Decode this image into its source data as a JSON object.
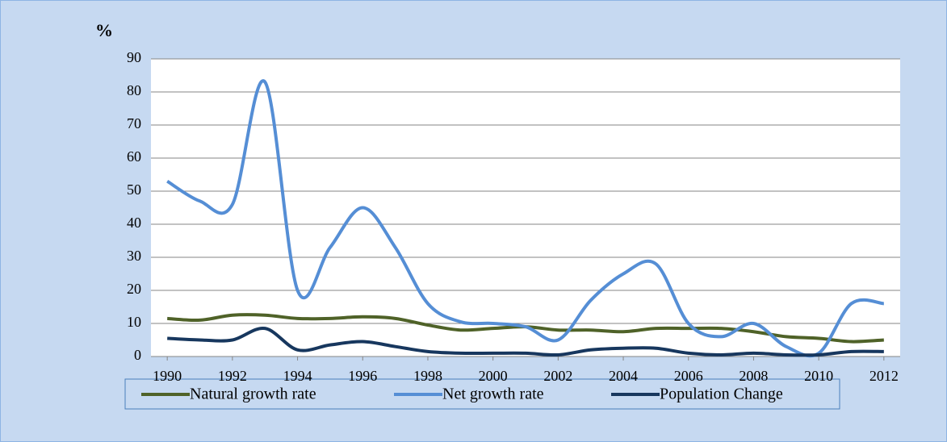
{
  "chart_data": {
    "type": "line",
    "ylabel": "%",
    "x": [
      1990,
      1991,
      1992,
      1993,
      1994,
      1995,
      1996,
      1997,
      1998,
      1999,
      2000,
      2001,
      2002,
      2003,
      2004,
      2005,
      2006,
      2007,
      2008,
      2009,
      2010,
      2011,
      2012
    ],
    "xlim": [
      1989.5,
      2012.5
    ],
    "xticks": [
      1990,
      1992,
      1994,
      1996,
      1998,
      2000,
      2002,
      2004,
      2006,
      2008,
      2010,
      2012
    ],
    "ylim": [
      0,
      90
    ],
    "yticks": [
      0,
      10,
      20,
      30,
      40,
      50,
      60,
      70,
      80,
      90
    ],
    "grid": true,
    "legend": "bottom",
    "series": [
      {
        "name": "Natural growth rate",
        "color": "#4f6228",
        "values": [
          11.5,
          11,
          12.5,
          12.5,
          11.5,
          11.5,
          12,
          11.5,
          9.5,
          8,
          8.5,
          9,
          8,
          8,
          7.5,
          8.5,
          8.5,
          8.5,
          7.5,
          6,
          5.5,
          4.5,
          5
        ]
      },
      {
        "name": "Net growth  rate",
        "color": "#558ed5",
        "values": [
          53,
          47,
          46,
          83,
          20,
          33,
          45,
          33,
          16,
          10.5,
          10,
          9,
          5,
          17,
          25,
          28,
          10,
          6,
          10,
          3,
          1,
          16,
          16
        ]
      },
      {
        "name": "Population Change",
        "color": "#17375e",
        "values": [
          5.5,
          5,
          5,
          8.5,
          2,
          3.5,
          4.5,
          3,
          1.5,
          1,
          1,
          1,
          0.5,
          2,
          2.5,
          2.5,
          1,
          0.5,
          1,
          0.5,
          0.5,
          1.5,
          1.5
        ]
      }
    ]
  }
}
